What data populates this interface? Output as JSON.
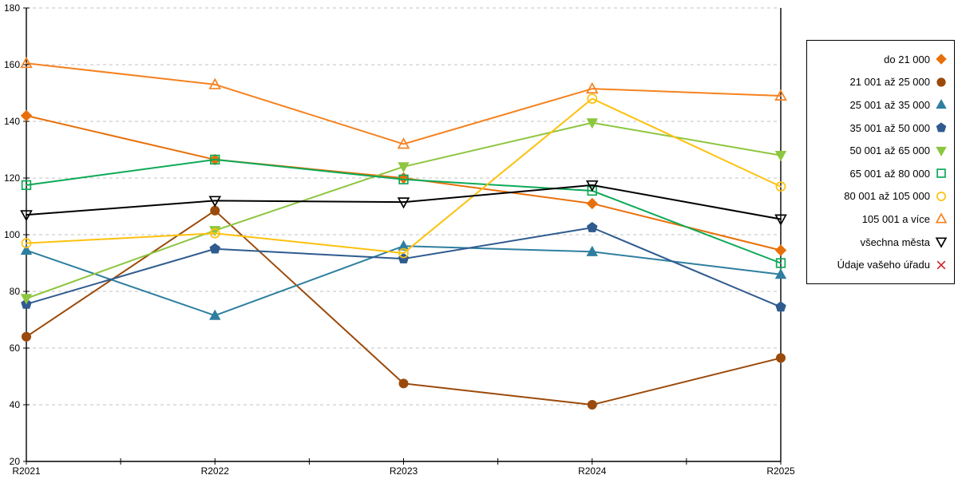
{
  "chart_data": {
    "type": "line",
    "title": "",
    "xlabel": "",
    "ylabel": "",
    "categories": [
      "R2021",
      "R2022",
      "R2023",
      "R2024",
      "R2025"
    ],
    "ylim": [
      20,
      180
    ],
    "ytick_step": 20,
    "grid": "horizontal-dashed",
    "legend_position": "right-outside",
    "gridline_color": "#c0c0c0",
    "axis_color": "#000000",
    "series": [
      {
        "name": "do 21 000",
        "marker": "diamond",
        "open": false,
        "color": "#e8700a",
        "values": [
          142,
          126.5,
          120,
          111,
          94.5
        ]
      },
      {
        "name": "21 001 až 25 000",
        "marker": "circle",
        "open": false,
        "color": "#9b4a0b",
        "values": [
          64,
          108.5,
          47.5,
          40,
          56.5
        ]
      },
      {
        "name": "25 001 až 35 000",
        "marker": "triangle-up",
        "open": false,
        "color": "#2e7f9f",
        "values": [
          94.5,
          71.5,
          96,
          94,
          86
        ]
      },
      {
        "name": "35 001 až 50 000",
        "marker": "pentagon",
        "open": false,
        "color": "#2f5b8f",
        "values": [
          75.5,
          95,
          91.5,
          102.5,
          74.5
        ]
      },
      {
        "name": "50 001 až 65 000",
        "marker": "triangle-down",
        "open": false,
        "color": "#8dc63f",
        "values": [
          77.5,
          101.5,
          124,
          139.5,
          128
        ]
      },
      {
        "name": "65 001 až 80 000",
        "marker": "square",
        "open": true,
        "color": "#0da957",
        "values": [
          117.5,
          126.5,
          119.5,
          115.5,
          90
        ]
      },
      {
        "name": "80 001 až 105 000",
        "marker": "circle",
        "open": true,
        "color": "#fdc10e",
        "values": [
          97,
          100.5,
          93.5,
          148,
          117
        ]
      },
      {
        "name": "105 001 a více",
        "marker": "triangle-up",
        "open": true,
        "color": "#f58220",
        "values": [
          160.5,
          153,
          132,
          151.5,
          149
        ]
      },
      {
        "name": "všechna města",
        "marker": "triangle-down",
        "open": true,
        "color": "#000000",
        "values": [
          107,
          112,
          111.5,
          117.5,
          105.5
        ]
      },
      {
        "name": "Údaje vašeho úřadu",
        "marker": "x",
        "open": true,
        "color": "#cf2525",
        "values": []
      }
    ]
  }
}
